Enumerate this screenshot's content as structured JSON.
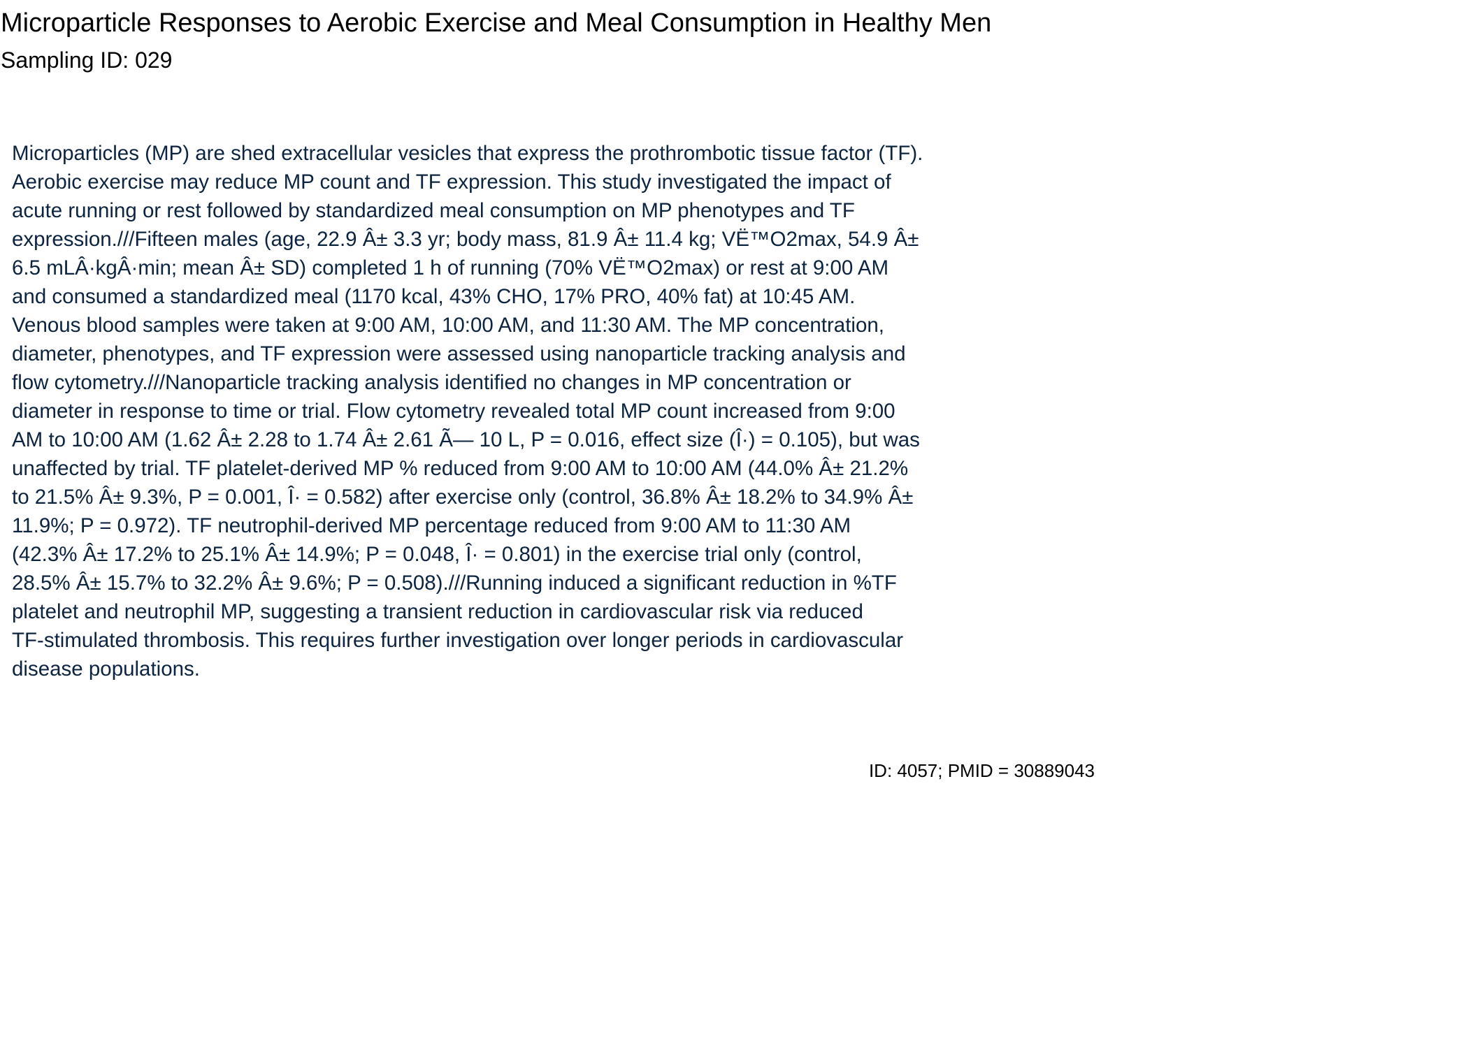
{
  "document": {
    "title": "Microparticle Responses to Aerobic Exercise and Meal Consumption in Healthy Men",
    "sampling_id": "Sampling ID: 029",
    "abstract_lines": [
      "Microparticles (MP) are shed extracellular vesicles that express the prothrombotic tissue factor (TF).",
      "Aerobic exercise may reduce MP count and TF expression. This study investigated the impact of",
      "acute running or rest followed by standardized meal consumption on MP phenotypes and TF",
      "expression.///Fifteen males (age, 22.9 Â± 3.3 yr; body mass, 81.9 Â± 11.4 kg; VË™O2max, 54.9 Â±",
      "6.5 mLÂ·kgÂ·min; mean Â± SD) completed 1 h of running (70% VË™O2max) or rest at 9:00 AM",
      "and consumed a standardized meal (1170 kcal, 43% CHO, 17% PRO, 40% fat) at 10:45 AM.",
      "Venous blood samples were taken at 9:00 AM, 10:00 AM, and 11:30 AM. The MP concentration,",
      "diameter, phenotypes, and TF expression were assessed using nanoparticle tracking analysis and",
      "flow cytometry.///Nanoparticle tracking analysis identified no changes in MP concentration or",
      "diameter in response to time or trial. Flow cytometry revealed total MP count increased from 9:00",
      "AM to 10:00 AM (1.62 Â± 2.28 to 1.74 Â± 2.61 Ã— 10 L, P = 0.016, effect size (Î·) = 0.105), but was",
      "unaffected by trial. TF platelet-derived MP % reduced from 9:00 AM to 10:00 AM (44.0% Â± 21.2%",
      "to 21.5% Â± 9.3%, P = 0.001, Î· = 0.582) after exercise only (control, 36.8% Â± 18.2% to 34.9% Â±",
      "11.9%; P = 0.972). TF neutrophil-derived MP percentage reduced from 9:00 AM to 11:30 AM",
      "(42.3% Â± 17.2% to 25.1% Â± 14.9%; P = 0.048, Î· = 0.801) in the exercise trial only (control,",
      "28.5% Â± 15.7% to 32.2% Â± 9.6%; P = 0.508).///Running induced a significant reduction in %TF",
      "platelet and neutrophil MP, suggesting a transient reduction in cardiovascular risk via reduced",
      "TF-stimulated thrombosis. This requires further investigation over longer periods in cardiovascular",
      "disease populations."
    ],
    "footer_id": "ID: 4057; PMID = 30889043"
  },
  "colors": {
    "title_text": "#000000",
    "abstract_text": "#0c2440",
    "background": "#ffffff"
  }
}
